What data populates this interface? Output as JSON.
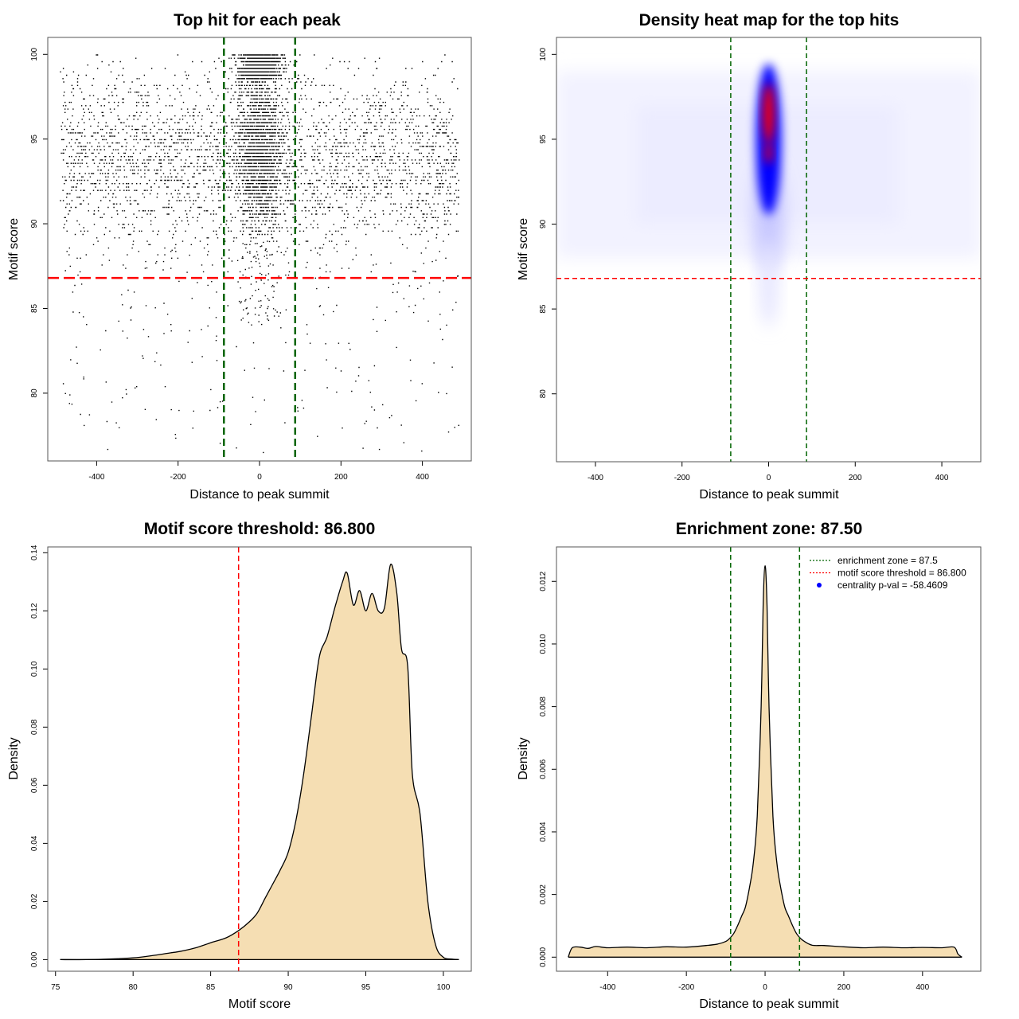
{
  "chart_data": [
    {
      "type": "scatter",
      "title": "Top hit for each peak",
      "xlabel": "Distance to peak summit",
      "ylabel": "Motif score",
      "xlim": [
        -520,
        520
      ],
      "ylim": [
        76,
        101
      ],
      "xticks": [
        -400,
        -200,
        0,
        200,
        400
      ],
      "yticks": [
        80,
        85,
        90,
        95,
        100
      ],
      "reference_lines": {
        "vertical": [
          -87.5,
          87.5
        ],
        "vertical_color": "#006400",
        "horizontal": 86.8,
        "horizontal_color": "#ff0000"
      },
      "point_color": "#000000",
      "x_range_points": [
        -490,
        490
      ],
      "y_range_points": [
        76.5,
        100
      ],
      "distribution_note": "points densest near x = 0, mostly between 88 and 100"
    },
    {
      "type": "heatmap",
      "title": "Density heat map for the top hits",
      "xlabel": "Distance to peak summit",
      "ylabel": "Motif score",
      "xlim": [
        -490,
        490
      ],
      "ylim": [
        76,
        101
      ],
      "xticks": [
        -400,
        -200,
        0,
        200,
        400
      ],
      "yticks": [
        80,
        85,
        90,
        95,
        100
      ],
      "reference_lines": {
        "vertical": [
          -87.5,
          87.5
        ],
        "vertical_color": "#006400",
        "horizontal": 86.8,
        "horizontal_color": "#ff0000"
      },
      "colors": [
        "#ffffff",
        "#0000ff",
        "#ff0000"
      ],
      "hotspot": {
        "x": 0,
        "y": 96.5
      }
    },
    {
      "type": "area",
      "title": "Motif score threshold: 86.800",
      "xlabel": "Motif score",
      "ylabel": "Density",
      "xlim": [
        74.5,
        101.8
      ],
      "ylim": [
        -0.004,
        0.142
      ],
      "xticks": [
        75,
        80,
        85,
        90,
        95,
        100
      ],
      "yticks": [
        0.0,
        0.02,
        0.04,
        0.06,
        0.08,
        0.1,
        0.12,
        0.14
      ],
      "ytick_labels": [
        "0.00",
        "0.02",
        "0.04",
        "0.06",
        "0.08",
        "0.10",
        "0.12",
        "0.14"
      ],
      "fill_color": "#f5deb3",
      "threshold": 86.8,
      "threshold_color": "#ff0000",
      "x": [
        75.3,
        77,
        79,
        80,
        81,
        82,
        83,
        84,
        85,
        86,
        86.8,
        87.5,
        88,
        88.5,
        89,
        89.5,
        90,
        90.5,
        91,
        91.5,
        92,
        92.5,
        93,
        93.5,
        93.8,
        94.2,
        94.6,
        95,
        95.4,
        95.8,
        96.2,
        96.6,
        97,
        97.3,
        97.7,
        98,
        98.5,
        99,
        99.5,
        100,
        100.5,
        101
      ],
      "y": [
        0.0,
        0.0,
        0.0003,
        0.0006,
        0.0012,
        0.002,
        0.0028,
        0.004,
        0.0058,
        0.0075,
        0.01,
        0.013,
        0.016,
        0.021,
        0.026,
        0.031,
        0.037,
        0.048,
        0.064,
        0.084,
        0.104,
        0.111,
        0.121,
        0.13,
        0.133,
        0.122,
        0.127,
        0.12,
        0.126,
        0.12,
        0.121,
        0.136,
        0.126,
        0.107,
        0.101,
        0.064,
        0.05,
        0.02,
        0.005,
        0.0008,
        0.0002,
        0.0
      ]
    },
    {
      "type": "area",
      "title": "Enrichment zone: 87.50",
      "xlabel": "Distance to peak summit",
      "ylabel": "Density",
      "xlim": [
        -530,
        548
      ],
      "ylim": [
        -0.00045,
        0.0131
      ],
      "xticks": [
        -400,
        -200,
        0,
        200,
        400
      ],
      "yticks": [
        0.0,
        0.002,
        0.004,
        0.006,
        0.008,
        0.01,
        0.012
      ],
      "ytick_labels": [
        "0.000",
        "0.002",
        "0.004",
        "0.006",
        "0.008",
        "0.010",
        "0.012"
      ],
      "fill_color": "#f5deb3",
      "zone_lines": [
        -87.5,
        87.5
      ],
      "zone_color": "#006400",
      "legend": {
        "position": "top-right",
        "entries": [
          {
            "label": "enrichment zone = 87.5",
            "color": "#006400",
            "style": "dotted-line"
          },
          {
            "label": "motif score threshold = 86.800",
            "color": "#ff0000",
            "style": "dotted-line"
          },
          {
            "label": "centrality p-val = -58.4609",
            "color": "#0000ff",
            "style": "point"
          }
        ]
      },
      "x": [
        -500,
        -490,
        -470,
        -450,
        -430,
        -400,
        -350,
        -300,
        -250,
        -200,
        -150,
        -120,
        -100,
        -90,
        -80,
        -70,
        -60,
        -50,
        -40,
        -30,
        -20,
        -10,
        -5,
        0,
        5,
        10,
        20,
        30,
        40,
        50,
        60,
        70,
        80,
        90,
        100,
        120,
        150,
        200,
        250,
        300,
        350,
        400,
        450,
        480,
        490,
        500
      ],
      "y": [
        0.0,
        0.0003,
        0.00032,
        0.00028,
        0.00034,
        0.0003,
        0.00032,
        0.0003,
        0.00033,
        0.00032,
        0.00037,
        0.00042,
        0.0005,
        0.0006,
        0.00075,
        0.001,
        0.0013,
        0.0016,
        0.0022,
        0.003,
        0.0045,
        0.008,
        0.0112,
        0.0125,
        0.0112,
        0.008,
        0.0045,
        0.003,
        0.0022,
        0.0016,
        0.0013,
        0.001,
        0.00075,
        0.0006,
        0.0005,
        0.00038,
        0.00037,
        0.00033,
        0.0003,
        0.00032,
        0.0003,
        0.00031,
        0.0003,
        0.00032,
        0.0001,
        0.0
      ]
    }
  ]
}
